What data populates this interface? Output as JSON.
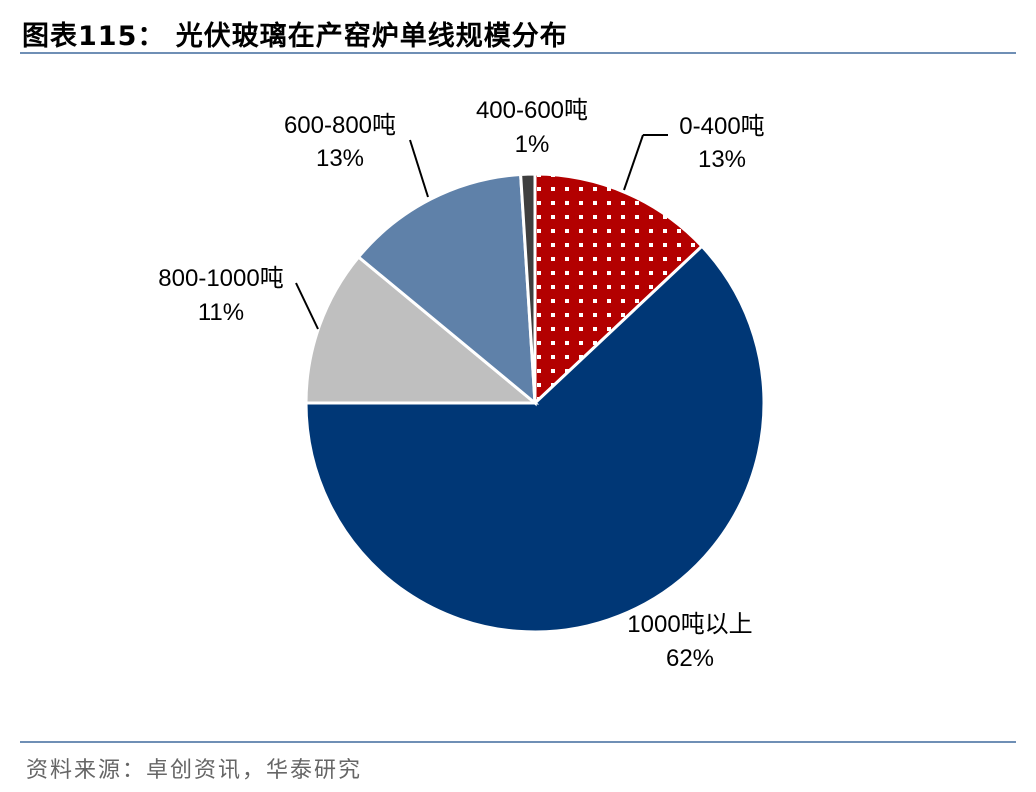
{
  "header": {
    "title": "图表115：  光伏玻璃在产窑炉单线规模分布"
  },
  "footer": {
    "source": "资料来源：卓创资讯，华泰研究"
  },
  "chart_data": {
    "type": "pie",
    "title": "光伏玻璃在产窑炉单线规模分布",
    "categories": [
      "0-400吨",
      "1000吨以上",
      "800-1000吨",
      "600-800吨",
      "400-600吨"
    ],
    "values": [
      13,
      62,
      11,
      13,
      1
    ],
    "unit": "%",
    "colors": [
      "#b30000",
      "#003776",
      "#bfbfbf",
      "#5f81a9",
      "#3f3f3f"
    ],
    "patterns": [
      "white-dots",
      "solid",
      "solid",
      "solid",
      "solid"
    ],
    "labels": [
      {
        "name": "0-400吨",
        "pct": "13%"
      },
      {
        "name": "1000吨以上",
        "pct": "62%"
      },
      {
        "name": "800-1000吨",
        "pct": "11%"
      },
      {
        "name": "600-800吨",
        "pct": "13%"
      },
      {
        "name": "400-600吨",
        "pct": "1%"
      }
    ],
    "start_angle": "12 o'clock, clockwise",
    "legend": "none (data labels with leader lines)"
  }
}
